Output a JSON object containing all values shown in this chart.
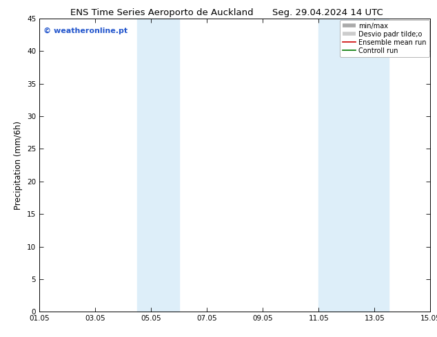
{
  "title_left": "ENS Time Series Aeroporto de Auckland",
  "title_right": "Seg. 29.04.2024 14 UTC",
  "ylabel": "Precipitation (mm/6h)",
  "ylim": [
    0,
    45
  ],
  "yticks": [
    0,
    5,
    10,
    15,
    20,
    25,
    30,
    35,
    40,
    45
  ],
  "xlim_num": [
    0,
    14
  ],
  "xtick_labels": [
    "01.05",
    "03.05",
    "05.05",
    "07.05",
    "09.05",
    "11.05",
    "13.05",
    "15.05"
  ],
  "xtick_positions": [
    0,
    2,
    4,
    6,
    8,
    10,
    12,
    14
  ],
  "shade_bands": [
    {
      "xmin": 3.5,
      "xmax": 5.0,
      "color": "#ddeef9"
    },
    {
      "xmin": 10.0,
      "xmax": 12.5,
      "color": "#ddeef9"
    }
  ],
  "watermark_text": "© weatheronline.pt",
  "watermark_color": "#2255cc",
  "legend_items": [
    {
      "label": "min/max",
      "color": "#aaaaaa",
      "lw": 4
    },
    {
      "label": "Desvio padr tilde;o",
      "color": "#cccccc",
      "lw": 4
    },
    {
      "label": "Ensemble mean run",
      "color": "#cc0000",
      "lw": 1.2
    },
    {
      "label": "Controll run",
      "color": "#007700",
      "lw": 1.2
    }
  ],
  "bg_color": "#ffffff",
  "plot_bg_color": "#ffffff",
  "title_fontsize": 9.5,
  "tick_fontsize": 7.5,
  "ylabel_fontsize": 8.5,
  "legend_fontsize": 7
}
